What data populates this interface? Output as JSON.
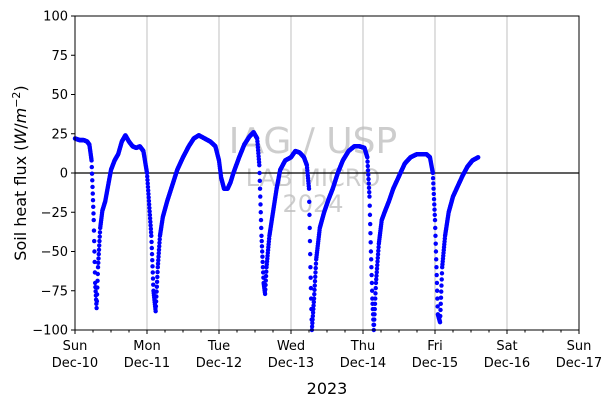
{
  "chart_data": {
    "type": "scatter",
    "title": "",
    "ylabel": "Soil heat flux (W/m−2)",
    "ylabel_parts": {
      "main": "Soil heat flux (",
      "unit_w": "W",
      "unit_mid": "/",
      "unit_m": "m",
      "unit_exp": "−2",
      "close": ")"
    },
    "xlabel": "2023",
    "ylim": [
      -100,
      100
    ],
    "yticks": [
      -100,
      -75,
      -50,
      -25,
      0,
      25,
      50,
      75,
      100
    ],
    "xlim_days": [
      0,
      7
    ],
    "xticks": [
      {
        "day": 0,
        "weekday": "Sun",
        "date": "Dec-10"
      },
      {
        "day": 1,
        "weekday": "Mon",
        "date": "Dec-11"
      },
      {
        "day": 2,
        "weekday": "Tue",
        "date": "Dec-12"
      },
      {
        "day": 3,
        "weekday": "Wed",
        "date": "Dec-13"
      },
      {
        "day": 4,
        "weekday": "Thu",
        "date": "Dec-14"
      },
      {
        "day": 5,
        "weekday": "Fri",
        "date": "Dec-15"
      },
      {
        "day": 6,
        "weekday": "Sat",
        "date": "Dec-16"
      },
      {
        "day": 7,
        "weekday": "Sun",
        "date": "Dec-17"
      }
    ],
    "grid": "vertical",
    "zero_line": true,
    "marker_color": "#0000ff",
    "watermark": [
      "IAG / USP",
      "LAB MICRO",
      "2024"
    ],
    "series": [
      {
        "points": [
          [
            0.0,
            22
          ],
          [
            0.06,
            21
          ],
          [
            0.12,
            21
          ],
          [
            0.17,
            20
          ],
          [
            0.2,
            18
          ],
          [
            0.23,
            8
          ],
          [
            0.26,
            -30
          ],
          [
            0.28,
            -70
          ],
          [
            0.3,
            -86
          ],
          [
            0.32,
            -60
          ],
          [
            0.35,
            -35
          ],
          [
            0.38,
            -24
          ],
          [
            0.42,
            -18
          ],
          [
            0.46,
            -8
          ],
          [
            0.5,
            2
          ],
          [
            0.55,
            8
          ],
          [
            0.6,
            12
          ],
          [
            0.65,
            20
          ],
          [
            0.7,
            24
          ],
          [
            0.75,
            20
          ],
          [
            0.8,
            17
          ],
          [
            0.85,
            16
          ],
          [
            0.9,
            17
          ],
          [
            0.95,
            14
          ],
          [
            1.0,
            0
          ],
          [
            1.03,
            -20
          ],
          [
            1.06,
            -40
          ],
          [
            1.09,
            -75
          ],
          [
            1.12,
            -88
          ],
          [
            1.15,
            -60
          ],
          [
            1.18,
            -40
          ],
          [
            1.22,
            -28
          ],
          [
            1.28,
            -18
          ],
          [
            1.35,
            -8
          ],
          [
            1.42,
            2
          ],
          [
            1.5,
            10
          ],
          [
            1.58,
            17
          ],
          [
            1.65,
            22
          ],
          [
            1.72,
            24
          ],
          [
            1.8,
            22
          ],
          [
            1.88,
            20
          ],
          [
            1.95,
            17
          ],
          [
            2.0,
            8
          ],
          [
            2.03,
            -3
          ],
          [
            2.07,
            -10
          ],
          [
            2.12,
            -10
          ],
          [
            2.16,
            -6
          ],
          [
            2.2,
            0
          ],
          [
            2.28,
            10
          ],
          [
            2.35,
            18
          ],
          [
            2.42,
            23
          ],
          [
            2.48,
            26
          ],
          [
            2.53,
            22
          ],
          [
            2.56,
            5
          ],
          [
            2.59,
            -40
          ],
          [
            2.62,
            -70
          ],
          [
            2.64,
            -77
          ],
          [
            2.66,
            -60
          ],
          [
            2.7,
            -40
          ],
          [
            2.75,
            -25
          ],
          [
            2.8,
            -10
          ],
          [
            2.85,
            2
          ],
          [
            2.92,
            8
          ],
          [
            3.0,
            10
          ],
          [
            3.06,
            14
          ],
          [
            3.12,
            13
          ],
          [
            3.18,
            10
          ],
          [
            3.22,
            5
          ],
          [
            3.25,
            -10
          ],
          [
            3.27,
            -60
          ],
          [
            3.29,
            -100
          ],
          [
            3.32,
            -80
          ],
          [
            3.35,
            -55
          ],
          [
            3.4,
            -35
          ],
          [
            3.46,
            -25
          ],
          [
            3.52,
            -17
          ],
          [
            3.58,
            -10
          ],
          [
            3.65,
            0
          ],
          [
            3.72,
            8
          ],
          [
            3.8,
            14
          ],
          [
            3.88,
            17
          ],
          [
            3.95,
            17
          ],
          [
            4.02,
            16
          ],
          [
            4.06,
            10
          ],
          [
            4.09,
            -15
          ],
          [
            4.11,
            -50
          ],
          [
            4.13,
            -80
          ],
          [
            4.15,
            -100
          ],
          [
            4.18,
            -70
          ],
          [
            4.22,
            -45
          ],
          [
            4.26,
            -30
          ],
          [
            4.3,
            -25
          ],
          [
            4.36,
            -18
          ],
          [
            4.42,
            -10
          ],
          [
            4.5,
            -2
          ],
          [
            4.58,
            6
          ],
          [
            4.66,
            10
          ],
          [
            4.75,
            12
          ],
          [
            4.82,
            12
          ],
          [
            4.88,
            12
          ],
          [
            4.93,
            10
          ],
          [
            4.97,
            0
          ],
          [
            5.0,
            -30
          ],
          [
            5.02,
            -60
          ],
          [
            5.04,
            -90
          ],
          [
            5.07,
            -95
          ],
          [
            5.1,
            -60
          ],
          [
            5.14,
            -40
          ],
          [
            5.19,
            -25
          ],
          [
            5.25,
            -15
          ],
          [
            5.3,
            -10
          ],
          [
            5.38,
            -2
          ],
          [
            5.45,
            4
          ],
          [
            5.52,
            8
          ],
          [
            5.6,
            10
          ]
        ],
        "day_offset_note": ""
      }
    ]
  }
}
